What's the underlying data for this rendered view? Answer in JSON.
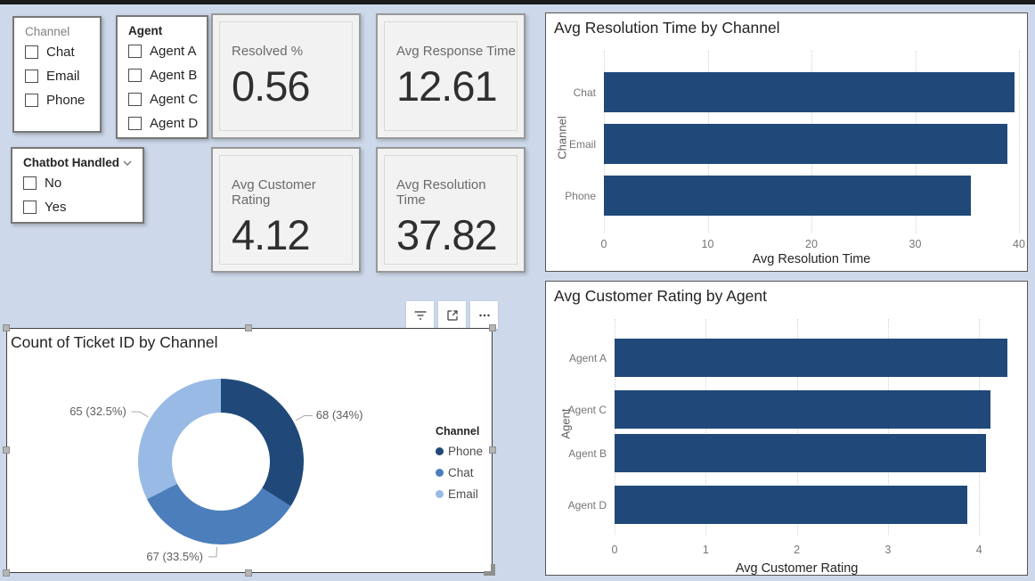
{
  "window": {
    "background": "#cdd9ea",
    "top_strip_color": "#1b1b1b"
  },
  "slicers": [
    {
      "id": "channel",
      "title": "Channel",
      "header_dark": false,
      "dropdown": false,
      "items": [
        "Chat",
        "Email",
        "Phone"
      ]
    },
    {
      "id": "agent",
      "title": "Agent",
      "header_dark": true,
      "dropdown": false,
      "items": [
        "Agent A",
        "Agent B",
        "Agent C",
        "Agent D"
      ]
    },
    {
      "id": "chatbot-handled",
      "title": "Chatbot Handled",
      "header_dark": true,
      "dropdown": true,
      "items": [
        "No",
        "Yes"
      ]
    }
  ],
  "cards": [
    {
      "label": "Resolved %",
      "value": "0.56"
    },
    {
      "label": "Avg Response Time",
      "value": "12.61"
    },
    {
      "label": "Avg Customer Rating",
      "value": "4.12"
    },
    {
      "label": "Avg Resolution Time",
      "value": "37.82"
    }
  ],
  "toolbar": {
    "icons": [
      "filter-icon",
      "focus-mode-icon",
      "more-options-icon"
    ]
  },
  "colors": {
    "bar_navy": "#20497a",
    "phone": "#20497a",
    "chat": "#4b7ebb",
    "email": "#98bae5",
    "gridline": "#d2d2d2",
    "axis_text": "#767676",
    "title_text": "#252423"
  },
  "chart_data": [
    {
      "id": "avg-resolution-time-by-channel",
      "type": "bar",
      "orientation": "horizontal",
      "title": "Avg Resolution Time by Channel",
      "categories": [
        "Chat",
        "Email",
        "Phone"
      ],
      "values": [
        39.6,
        38.9,
        35.4
      ],
      "xlabel": "Avg Resolution Time",
      "ylabel": "Channel",
      "xlim": [
        0,
        40
      ],
      "xticks": [
        0,
        10,
        20,
        30,
        40
      ],
      "grid": true,
      "bar_color": "#20497a",
      "legend": false
    },
    {
      "id": "count-of-ticket-id-by-channel",
      "type": "pie",
      "donut": true,
      "selected": true,
      "title": "Count of Ticket ID by Channel",
      "legend_title": "Channel",
      "legend_position": "right",
      "segments": [
        {
          "label": "Phone",
          "value": 68,
          "pct": 34.0,
          "color": "#20497a",
          "data_label": "68 (34%)"
        },
        {
          "label": "Chat",
          "value": 67,
          "pct": 33.5,
          "color": "#4b7ebb",
          "data_label": "67 (33.5%)"
        },
        {
          "label": "Email",
          "value": 65,
          "pct": 32.5,
          "color": "#98bae5",
          "data_label": "65 (32.5%)"
        }
      ]
    },
    {
      "id": "avg-customer-rating-by-agent",
      "type": "bar",
      "orientation": "horizontal",
      "title": "Avg Customer Rating by Agent",
      "categories": [
        "Agent A",
        "Agent C",
        "Agent B",
        "Agent D"
      ],
      "values": [
        4.31,
        4.13,
        4.08,
        3.87
      ],
      "xlabel": "Avg Customer Rating",
      "ylabel": "Agent",
      "xlim": [
        0,
        4.5
      ],
      "xticks": [
        0,
        1,
        2,
        3,
        4
      ],
      "grid": true,
      "bar_color": "#20497a",
      "legend": false
    }
  ]
}
